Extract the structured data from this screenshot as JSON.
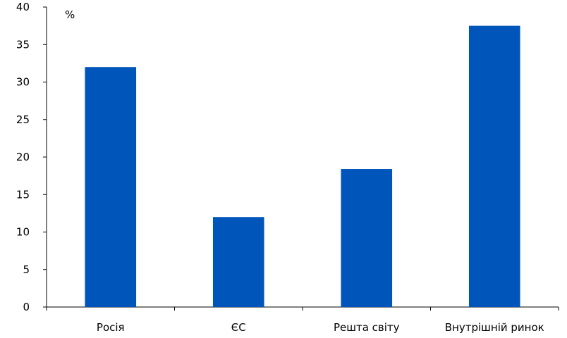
{
  "chart_data": {
    "type": "bar",
    "categories": [
      "Росія",
      "ЄС",
      "Решта світу",
      "Внутрішній ринок"
    ],
    "values": [
      32,
      12,
      18.4,
      37.5
    ],
    "ylabel": "%",
    "ylim": [
      0,
      40
    ],
    "yticks": [
      0,
      5,
      10,
      15,
      20,
      25,
      30,
      35,
      40
    ],
    "grid": false,
    "legend": "none",
    "bar_color": "#0055BB",
    "axis_color": "#000000"
  }
}
